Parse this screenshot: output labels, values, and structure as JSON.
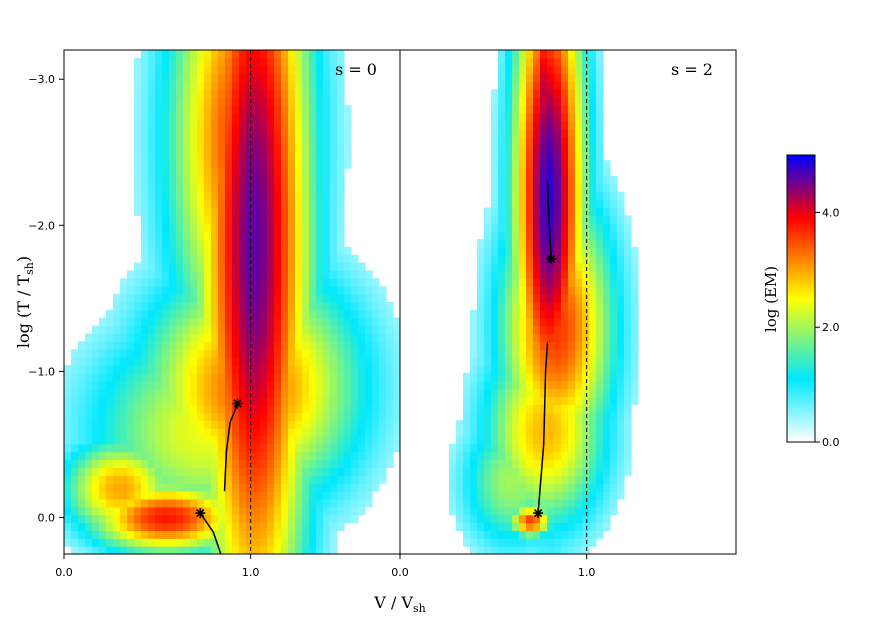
{
  "chart_data": {
    "type": "heatmap",
    "title": "",
    "xlabel": "V / V",
    "xlabel_sub": "sh",
    "ylabel": "log (T / T",
    "ylabel_sub": "sh",
    "ylabel_close": ")",
    "y_inverted": true,
    "xlim": [
      0,
      1.8
    ],
    "ylim": [
      0.25,
      -3.2
    ],
    "x_ticks": [
      0.0,
      1.0
    ],
    "x_tick_labels": [
      "0.0",
      "1.0"
    ],
    "y_ticks": [
      0.0,
      -1.0,
      -2.0,
      -3.0
    ],
    "y_tick_labels": [
      "0.0",
      "−1.0",
      "−2.0",
      "−3.0"
    ],
    "reference_line": {
      "x": 1.0,
      "style": "dashed"
    },
    "colormap": [
      "#ffffff",
      "#00e8ff",
      "#ffff00",
      "#ff0000",
      "#0000ff"
    ],
    "colorbar": {
      "label": "log (EM)",
      "range": [
        0,
        5
      ],
      "ticks": [
        0.0,
        2.0,
        4.0
      ],
      "tick_labels": [
        "0.0",
        "2.0",
        "4.0"
      ]
    },
    "panels": [
      {
        "label": "s = 0",
        "markers": [
          {
            "x": 0.73,
            "y": -0.03
          },
          {
            "x": 0.93,
            "y": -0.78
          }
        ],
        "curves": [
          [
            [
              0.73,
              -0.03
            ],
            [
              0.8,
              0.1
            ],
            [
              0.84,
              0.25
            ]
          ],
          [
            [
              0.86,
              -0.18
            ],
            [
              0.87,
              -0.45
            ],
            [
              0.89,
              -0.65
            ],
            [
              0.93,
              -0.78
            ]
          ]
        ],
        "blobs": [
          {
            "x": 1.02,
            "y": -1.9,
            "sx": 0.22,
            "sy": 2.2,
            "level": 4.6
          },
          {
            "x": 0.95,
            "y": -2.6,
            "sx": 0.28,
            "sy": 1.2,
            "level": 3.6
          },
          {
            "x": 1.0,
            "y": -0.9,
            "sx": 0.42,
            "sy": 0.6,
            "level": 3.4
          },
          {
            "x": 0.55,
            "y": 0.0,
            "sx": 0.3,
            "sy": 0.18,
            "level": 3.8
          },
          {
            "x": 0.3,
            "y": -0.2,
            "sx": 0.22,
            "sy": 0.25,
            "level": 3.0
          },
          {
            "x": 0.75,
            "y": -0.6,
            "sx": 0.45,
            "sy": 0.55,
            "level": 2.4
          }
        ]
      },
      {
        "label": "s = 2",
        "markers": [
          {
            "x": 0.74,
            "y": -0.03
          },
          {
            "x": 0.81,
            "y": -1.77
          }
        ],
        "curves": [
          [
            [
              0.81,
              -1.77
            ],
            [
              0.8,
              -2.0
            ],
            [
              0.79,
              -2.3
            ]
          ],
          [
            [
              0.74,
              -0.03
            ],
            [
              0.77,
              -0.5
            ],
            [
              0.78,
              -1.0
            ],
            [
              0.79,
              -1.2
            ]
          ]
        ],
        "blobs": [
          {
            "x": 0.8,
            "y": -2.2,
            "sx": 0.14,
            "sy": 1.3,
            "level": 4.8
          },
          {
            "x": 0.84,
            "y": -1.3,
            "sx": 0.22,
            "sy": 0.7,
            "level": 3.6
          },
          {
            "x": 0.78,
            "y": -0.6,
            "sx": 0.24,
            "sy": 0.5,
            "level": 2.9
          },
          {
            "x": 0.7,
            "y": 0.02,
            "sx": 0.08,
            "sy": 0.08,
            "level": 3.6
          },
          {
            "x": 0.6,
            "y": -0.25,
            "sx": 0.2,
            "sy": 0.35,
            "level": 2.0
          },
          {
            "x": 0.78,
            "y": -2.9,
            "sx": 0.08,
            "sy": 0.6,
            "level": 4.2
          }
        ]
      }
    ]
  }
}
